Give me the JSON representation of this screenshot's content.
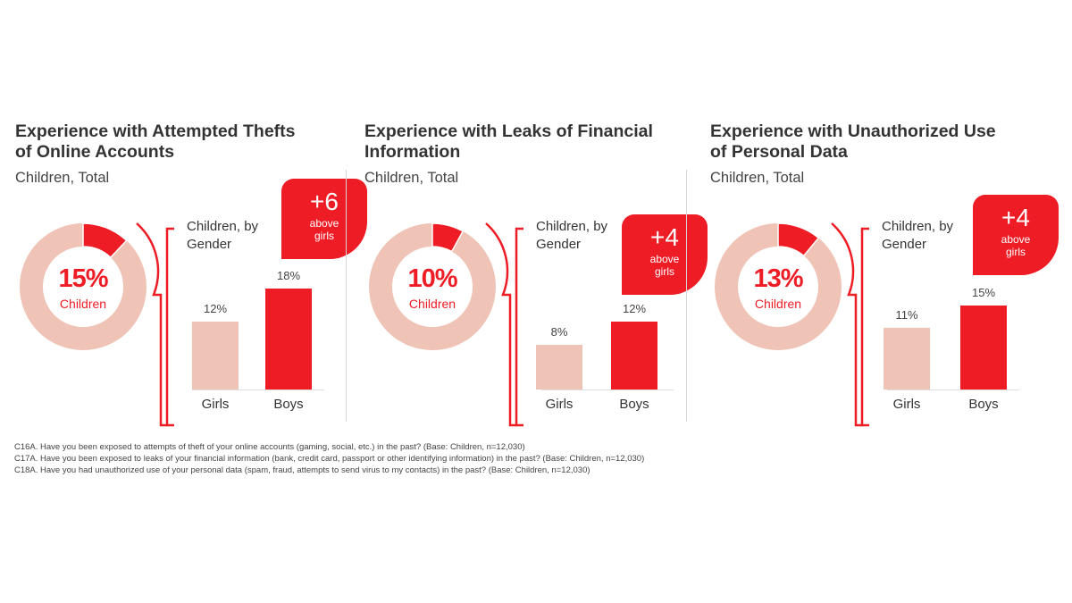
{
  "colors": {
    "accent": "#ee1c25",
    "light": "#efc3b6",
    "text": "#333333"
  },
  "panels": [
    {
      "title": "Experience with Attempted Thefts of Online Accounts",
      "subtitle": "Children, Total",
      "donut_value": "15%",
      "donut_label": "Children",
      "gender_label": "Children, by Gender",
      "callout_number": "+6",
      "callout_text": "above girls",
      "bars": [
        {
          "category": "Girls",
          "value_label": "12%"
        },
        {
          "category": "Boys",
          "value_label": "18%"
        }
      ]
    },
    {
      "title": "Experience with Leaks of Financial Information",
      "subtitle": "Children, Total",
      "donut_value": "10%",
      "donut_label": "Children",
      "gender_label": "Children, by Gender",
      "callout_number": "+4",
      "callout_text": "above girls",
      "bars": [
        {
          "category": "Girls",
          "value_label": "8%"
        },
        {
          "category": "Boys",
          "value_label": "12%"
        }
      ]
    },
    {
      "title": "Experience with Unauthorized Use of Personal Data",
      "subtitle": "Children, Total",
      "donut_value": "13%",
      "donut_label": "Children",
      "gender_label": "Children, by Gender",
      "callout_number": "+4",
      "callout_text": "above girls",
      "bars": [
        {
          "category": "Girls",
          "value_label": "11%"
        },
        {
          "category": "Boys",
          "value_label": "15%"
        }
      ]
    }
  ],
  "footnotes": [
    "C16A. Have you been exposed to attempts of theft of your online accounts (gaming, social, etc.) in the past?  (Base: Children, n=12,030)",
    "C17A. Have you been exposed to leaks of your financial information (bank, credit card, passport or other identifying information) in the past?  (Base: Children, n=12,030)",
    "C18A. Have you had unauthorized use of your personal data (spam, fraud, attempts to send virus to my contacts) in the past?  (Base: Children, n=12,030)"
  ],
  "chart_data": [
    {
      "type": "pie",
      "title": "Experience with Attempted Thefts of Online Accounts",
      "subtitle": "Children, Total",
      "categories": [
        "Children"
      ],
      "values": [
        15
      ]
    },
    {
      "type": "bar",
      "title": "Experience with Attempted Thefts of Online Accounts",
      "subtitle": "Children, by Gender",
      "categories": [
        "Girls",
        "Boys"
      ],
      "values": [
        12,
        18
      ],
      "annotation": "+6 above girls",
      "ylim": [
        0,
        20
      ]
    },
    {
      "type": "pie",
      "title": "Experience with Leaks of Financial Information",
      "subtitle": "Children, Total",
      "categories": [
        "Children"
      ],
      "values": [
        10
      ]
    },
    {
      "type": "bar",
      "title": "Experience with Leaks of Financial Information",
      "subtitle": "Children, by Gender",
      "categories": [
        "Girls",
        "Boys"
      ],
      "values": [
        8,
        12
      ],
      "annotation": "+4 above girls",
      "ylim": [
        0,
        20
      ]
    },
    {
      "type": "pie",
      "title": "Experience with Unauthorized Use of Personal Data",
      "subtitle": "Children, Total",
      "categories": [
        "Children"
      ],
      "values": [
        13
      ]
    },
    {
      "type": "bar",
      "title": "Experience with Unauthorized Use of Personal Data",
      "subtitle": "Children, by Gender",
      "categories": [
        "Girls",
        "Boys"
      ],
      "values": [
        11,
        15
      ],
      "annotation": "+4 above girls",
      "ylim": [
        0,
        20
      ]
    }
  ]
}
